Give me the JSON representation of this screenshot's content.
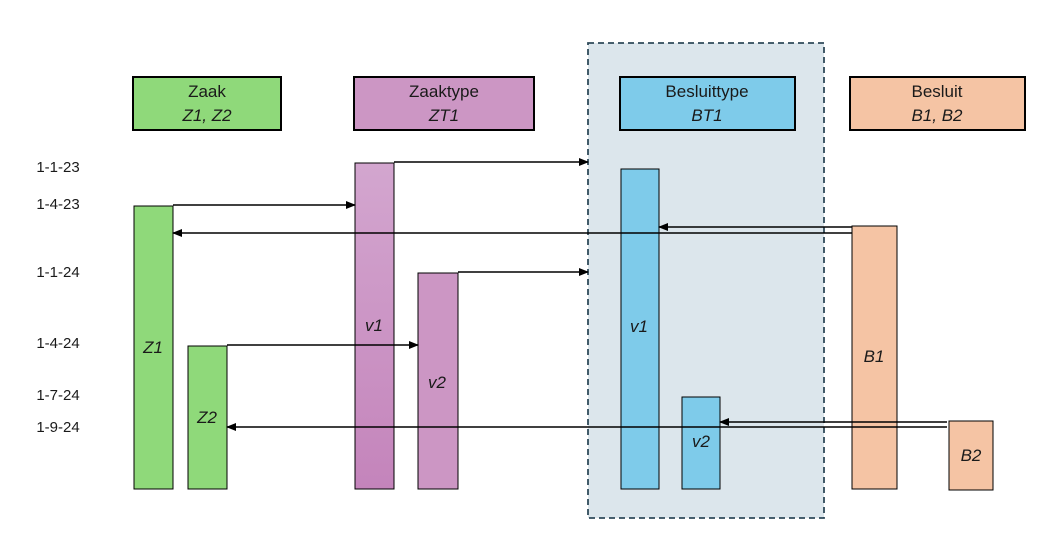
{
  "headers": {
    "zaak": {
      "title": "Zaak",
      "sub": "Z1, Z2",
      "fill": "#8fd97a"
    },
    "zaaktype": {
      "title": "Zaaktype",
      "sub": "ZT1",
      "fill": "#cc96c4"
    },
    "besluittype": {
      "title": "Besluittype",
      "sub": "BT1",
      "fill": "#7ecbea"
    },
    "besluit": {
      "title": "Besluit",
      "sub": "B1, B2",
      "fill": "#f5c4a4"
    }
  },
  "dates": [
    "1-1-23",
    "1-4-23",
    "1-1-24",
    "1-4-24",
    "1-7-24",
    "1-9-24"
  ],
  "bars": {
    "z1": {
      "label": "Z1",
      "fill": "#8fd97a"
    },
    "z2": {
      "label": "Z2",
      "fill": "#8fd97a"
    },
    "zt_v1": {
      "label": "v1",
      "fill_top": "#d3a6cf",
      "fill_bottom": "#c484bb"
    },
    "zt_v2": {
      "label": "v2",
      "fill": "#cc96c4"
    },
    "bt_v1": {
      "label": "v1",
      "fill": "#7ecbea"
    },
    "bt_v2": {
      "label": "v2",
      "fill": "#7ecbea"
    },
    "b1": {
      "label": "B1",
      "fill": "#f5c4a4"
    },
    "b2": {
      "label": "B2",
      "fill": "#f5c4a4"
    }
  },
  "highlight_region": {
    "fill": "#dce6ec",
    "border": "#2f4a5a"
  }
}
